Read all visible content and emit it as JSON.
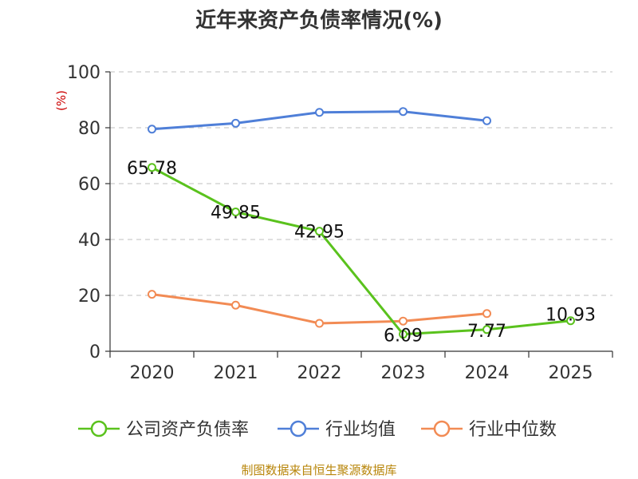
{
  "chart_data": {
    "type": "line",
    "title": "近年来资产负债率情况(%)",
    "unit_label": "(%)",
    "categories": [
      "2020",
      "2021",
      "2022",
      "2023",
      "2024",
      "2025"
    ],
    "ylim": [
      0,
      100
    ],
    "yticks": [
      0,
      20,
      40,
      60,
      80,
      100
    ],
    "grid": true,
    "legend_position": "bottom",
    "series": [
      {
        "name": "公司资产负债率",
        "color": "#5ac21d",
        "values": [
          65.78,
          49.85,
          42.95,
          6.09,
          7.77,
          10.93
        ],
        "labels": [
          "65.78",
          "49.85",
          "42.95",
          "6.09",
          "7.77",
          "10.93"
        ]
      },
      {
        "name": "行业均值",
        "color": "#4f7fd8",
        "values": [
          79.5,
          81.6,
          85.5,
          85.8,
          82.5,
          null
        ]
      },
      {
        "name": "行业中位数",
        "color": "#f28b54",
        "values": [
          20.4,
          16.5,
          10.0,
          10.8,
          13.5,
          null
        ]
      }
    ]
  },
  "source": "制图数据来自恒生聚源数据库"
}
